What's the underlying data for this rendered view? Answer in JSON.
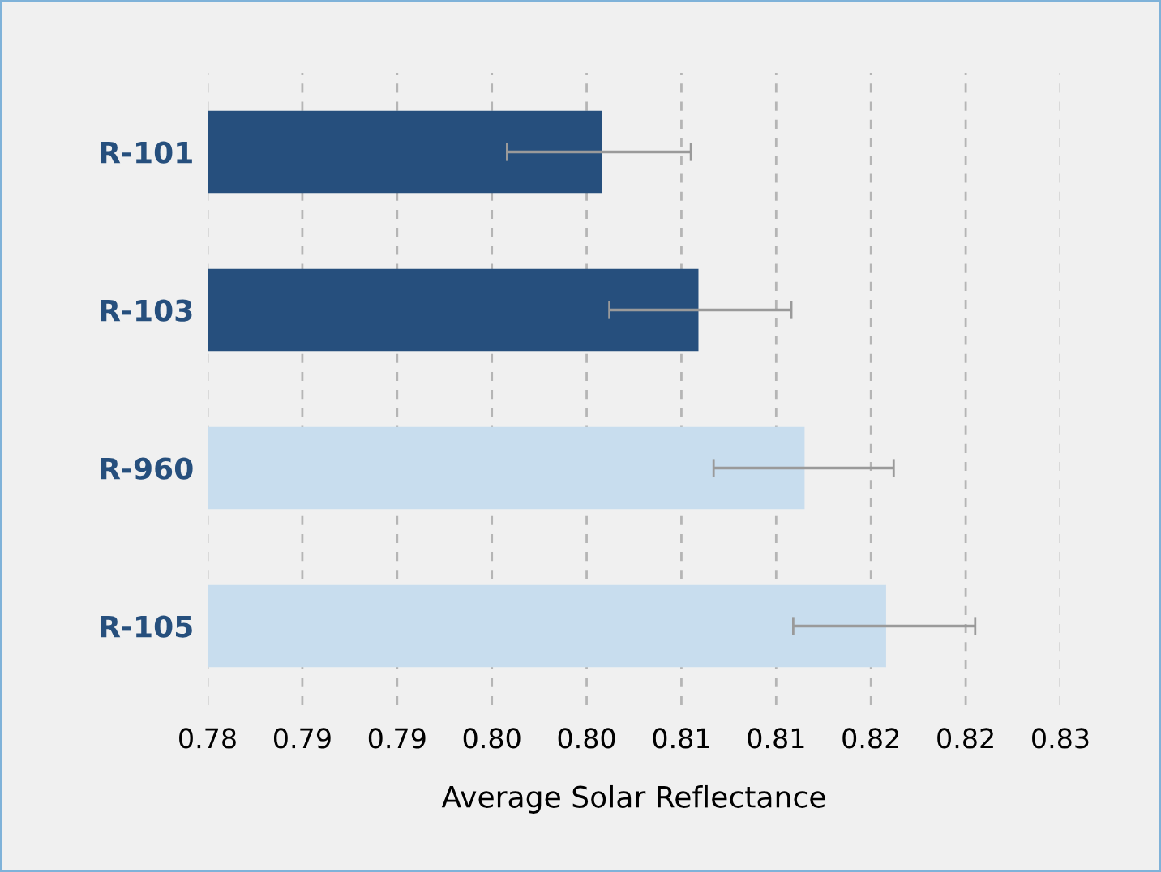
{
  "chart_data": {
    "type": "bar",
    "orientation": "horizontal",
    "xlabel": "Average Solar Reflectance",
    "categories": [
      "R-101",
      "R-103",
      "R-960",
      "R-105"
    ],
    "values": [
      0.8008,
      0.8059,
      0.8115,
      0.8158
    ],
    "colors": [
      "#264f7d",
      "#264f7d",
      "#c8ddee",
      "#c8ddee"
    ],
    "errors": [
      [
        0.7958,
        0.8055
      ],
      [
        0.8012,
        0.8108
      ],
      [
        0.8067,
        0.8162
      ],
      [
        0.8109,
        0.8205
      ]
    ],
    "xlim": [
      0.78,
      0.825
    ],
    "xticks": [
      {
        "value": 0.78,
        "label": "0.78"
      },
      {
        "value": 0.785,
        "label": "0.79"
      },
      {
        "value": 0.79,
        "label": "0.79"
      },
      {
        "value": 0.795,
        "label": "0.80"
      },
      {
        "value": 0.8,
        "label": "0.80"
      },
      {
        "value": 0.805,
        "label": "0.81"
      },
      {
        "value": 0.81,
        "label": "0.81"
      },
      {
        "value": 0.815,
        "label": "0.82"
      },
      {
        "value": 0.82,
        "label": "0.82"
      },
      {
        "value": 0.825,
        "label": "0.83"
      }
    ],
    "grid": "x"
  }
}
